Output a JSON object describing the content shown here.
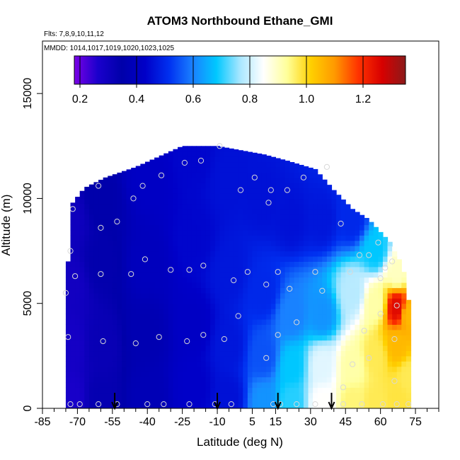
{
  "chart_data": {
    "type": "heatmap",
    "title": "ATOM3 Northbound Ethane_GMI",
    "subtitle_flights": "Flts: 7,8,9,10,11,12",
    "subtitle_dates": "MMDD: 1014,1017,1019,1020,1023,1025",
    "xlabel": "Latitude (deg N)",
    "ylabel": "Altitude (m)",
    "xlim": [
      -85,
      85
    ],
    "ylim": [
      0,
      17500
    ],
    "xticks": [
      -85,
      -70,
      -55,
      -40,
      -25,
      -10,
      5,
      15,
      30,
      45,
      60,
      75
    ],
    "xtick_labels": [
      "-85",
      "-70",
      "-55",
      "-40",
      "-25",
      "-10",
      "5",
      "15",
      "30",
      "45",
      "60",
      "75"
    ],
    "yticks": [
      0,
      5000,
      10000,
      15000
    ],
    "ytick_labels": [
      "0",
      "5000",
      "10000",
      "15000"
    ],
    "colorbar": {
      "range": [
        0.18,
        1.35
      ],
      "ticks": [
        0.2,
        0.4,
        0.6,
        0.8,
        1.0,
        1.2
      ],
      "tick_labels": [
        "0.2",
        "0.4",
        "0.6",
        "0.8",
        "1.0",
        "1.2"
      ],
      "colors": [
        "#7a00e6",
        "#1a00cc",
        "#0000aa",
        "#0000c8",
        "#0030f0",
        "#1a80ff",
        "#00c8ff",
        "#a8e6ff",
        "#ffffff",
        "#ffff99",
        "#ffd000",
        "#ff9900",
        "#ff3300",
        "#d80000",
        "#8b1a1a"
      ]
    },
    "arrows_latitude": [
      -54,
      -10,
      16,
      39
    ],
    "upper_envelope": [
      [
        -75,
        5500
      ],
      [
        -74,
        7000
      ],
      [
        -72,
        9800
      ],
      [
        -67,
        10500
      ],
      [
        -58,
        11000
      ],
      [
        -45,
        11500
      ],
      [
        -35,
        12000
      ],
      [
        -25,
        12500
      ],
      [
        -10,
        12500
      ],
      [
        0,
        12300
      ],
      [
        10,
        12100
      ],
      [
        20,
        11800
      ],
      [
        32,
        11400
      ],
      [
        40,
        10400
      ],
      [
        48,
        9500
      ],
      [
        55,
        9000
      ],
      [
        60,
        8400
      ],
      [
        66,
        7700
      ],
      [
        70,
        6500
      ],
      [
        73,
        4500
      ]
    ],
    "field_anchors": [
      {
        "lat": -73,
        "alt": 500,
        "value": 0.27
      },
      {
        "lat": -73,
        "alt": 3000,
        "value": 0.28
      },
      {
        "lat": -73,
        "alt": 6000,
        "value": 0.29
      },
      {
        "lat": -73,
        "alt": 9000,
        "value": 0.3
      },
      {
        "lat": -60,
        "alt": 500,
        "value": 0.33
      },
      {
        "lat": -60,
        "alt": 3000,
        "value": 0.32
      },
      {
        "lat": -60,
        "alt": 7000,
        "value": 0.34
      },
      {
        "lat": -60,
        "alt": 10000,
        "value": 0.35
      },
      {
        "lat": -40,
        "alt": 500,
        "value": 0.38
      },
      {
        "lat": -40,
        "alt": 3500,
        "value": 0.37
      },
      {
        "lat": -40,
        "alt": 7000,
        "value": 0.4
      },
      {
        "lat": -40,
        "alt": 11000,
        "value": 0.42
      },
      {
        "lat": -20,
        "alt": 1000,
        "value": 0.43
      },
      {
        "lat": -20,
        "alt": 4000,
        "value": 0.42
      },
      {
        "lat": -20,
        "alt": 8000,
        "value": 0.44
      },
      {
        "lat": -20,
        "alt": 12000,
        "value": 0.44
      },
      {
        "lat": -5,
        "alt": 500,
        "value": 0.46
      },
      {
        "lat": -5,
        "alt": 3000,
        "value": 0.47
      },
      {
        "lat": -5,
        "alt": 6500,
        "value": 0.47
      },
      {
        "lat": -5,
        "alt": 11000,
        "value": 0.46
      },
      {
        "lat": 10,
        "alt": 300,
        "value": 0.62
      },
      {
        "lat": 10,
        "alt": 2500,
        "value": 0.55
      },
      {
        "lat": 10,
        "alt": 5500,
        "value": 0.5
      },
      {
        "lat": 10,
        "alt": 10000,
        "value": 0.46
      },
      {
        "lat": 22,
        "alt": 300,
        "value": 0.7
      },
      {
        "lat": 22,
        "alt": 2000,
        "value": 0.68
      },
      {
        "lat": 22,
        "alt": 4500,
        "value": 0.6
      },
      {
        "lat": 22,
        "alt": 9000,
        "value": 0.46
      },
      {
        "lat": 35,
        "alt": 300,
        "value": 0.85
      },
      {
        "lat": 35,
        "alt": 2000,
        "value": 0.82
      },
      {
        "lat": 35,
        "alt": 4500,
        "value": 0.62
      },
      {
        "lat": 35,
        "alt": 9000,
        "value": 0.47
      },
      {
        "lat": 48,
        "alt": 300,
        "value": 0.95
      },
      {
        "lat": 48,
        "alt": 2000,
        "value": 0.92
      },
      {
        "lat": 48,
        "alt": 5500,
        "value": 0.78
      },
      {
        "lat": 48,
        "alt": 9000,
        "value": 0.5
      },
      {
        "lat": 58,
        "alt": 300,
        "value": 0.97
      },
      {
        "lat": 58,
        "alt": 2500,
        "value": 0.97
      },
      {
        "lat": 58,
        "alt": 5000,
        "value": 0.92
      },
      {
        "lat": 58,
        "alt": 7500,
        "value": 0.68
      },
      {
        "lat": 67,
        "alt": 500,
        "value": 0.98
      },
      {
        "lat": 67,
        "alt": 3000,
        "value": 1.05
      },
      {
        "lat": 67,
        "alt": 4800,
        "value": 1.25
      },
      {
        "lat": 67,
        "alt": 6500,
        "value": 0.9
      },
      {
        "lat": 72,
        "alt": 1500,
        "value": 0.97
      },
      {
        "lat": 72,
        "alt": 4500,
        "value": 1.05
      }
    ],
    "sample_points": [
      [
        -75,
        5500
      ],
      [
        -73,
        7500
      ],
      [
        -72,
        9500
      ],
      [
        -71,
        6300
      ],
      [
        -74,
        3400
      ],
      [
        -60,
        6400
      ],
      [
        -60,
        8600
      ],
      [
        -61,
        10600
      ],
      [
        -59,
        3200
      ],
      [
        -53,
        8900
      ],
      [
        -47,
        6400
      ],
      [
        -46,
        10000
      ],
      [
        -45,
        3100
      ],
      [
        -41,
        7100
      ],
      [
        -42,
        10600
      ],
      [
        -35,
        3400
      ],
      [
        -34,
        11100
      ],
      [
        -30,
        6600
      ],
      [
        -24,
        11700
      ],
      [
        -22,
        6600
      ],
      [
        -23,
        3200
      ],
      [
        -17,
        11800
      ],
      [
        -16,
        6800
      ],
      [
        -16,
        3500
      ],
      [
        -9,
        12500
      ],
      [
        -7,
        3300
      ],
      [
        -3,
        6100
      ],
      [
        -1,
        4400
      ],
      [
        0,
        10400
      ],
      [
        3,
        6500
      ],
      [
        6,
        11000
      ],
      [
        11,
        2400
      ],
      [
        11,
        5900
      ],
      [
        12,
        9800
      ],
      [
        13,
        10400
      ],
      [
        16,
        6500
      ],
      [
        16,
        3500
      ],
      [
        20,
        10400
      ],
      [
        21,
        5700
      ],
      [
        24,
        4100
      ],
      [
        27,
        11000
      ],
      [
        32,
        6500
      ],
      [
        35,
        5600
      ],
      [
        37,
        11500
      ],
      [
        43,
        8800
      ],
      [
        47,
        6500
      ],
      [
        51,
        7300
      ],
      [
        55,
        7300
      ],
      [
        59,
        7900
      ],
      [
        60,
        6200
      ],
      [
        62,
        6700
      ],
      [
        65,
        7000
      ],
      [
        67,
        4900
      ],
      [
        66,
        3300
      ],
      [
        55,
        2400
      ],
      [
        53,
        3700
      ],
      [
        48,
        2100
      ],
      [
        44,
        1000
      ],
      [
        60,
        4500
      ],
      [
        66,
        1300
      ],
      [
        -73,
        200
      ],
      [
        -69,
        200
      ],
      [
        -61,
        200
      ],
      [
        -53,
        200
      ],
      [
        -40,
        200
      ],
      [
        -33,
        200
      ],
      [
        -22,
        200
      ],
      [
        -11,
        200
      ],
      [
        -4,
        200
      ],
      [
        14,
        200
      ],
      [
        17,
        200
      ],
      [
        24,
        200
      ],
      [
        32,
        200
      ],
      [
        44,
        200
      ],
      [
        52,
        200
      ],
      [
        61,
        200
      ],
      [
        67,
        200
      ],
      [
        72,
        200
      ]
    ]
  }
}
